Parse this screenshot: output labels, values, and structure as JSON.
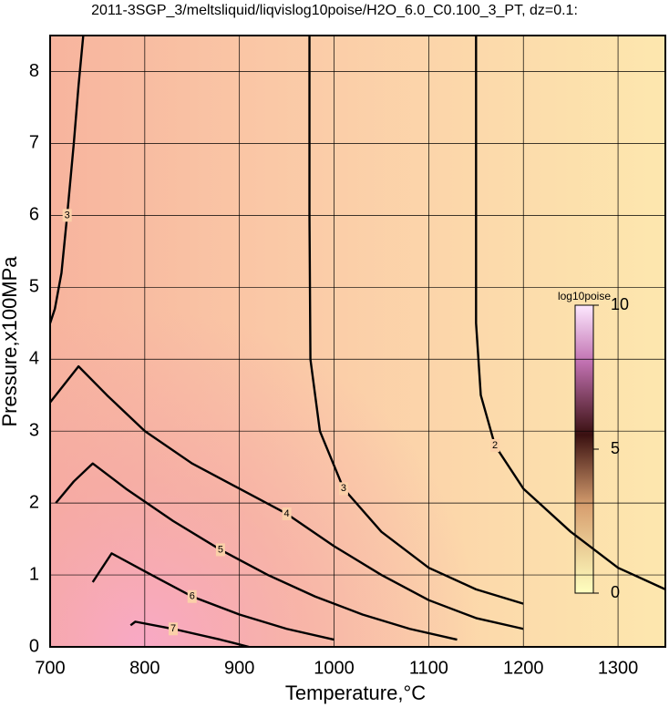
{
  "chart_data": {
    "type": "contour",
    "title": "2011-3SGP_3/meltsliquid/liqvislog10poise/H2O_6.0_C0.100_3_PT, dz=0.1:",
    "xlabel": "Temperature,°C",
    "ylabel": "Pressure,x100MPa",
    "xlim": [
      700,
      1350
    ],
    "ylim": [
      0,
      8.5
    ],
    "xticks": [
      700,
      800,
      900,
      1000,
      1100,
      1200,
      1300
    ],
    "yticks": [
      0,
      1,
      2,
      3,
      4,
      5,
      6,
      7,
      8
    ],
    "grid": true,
    "contours": [
      {
        "level": 2,
        "x": [
          1150,
          1150,
          1150,
          1155,
          1170,
          1200,
          1250,
          1300,
          1350
        ],
        "y": [
          8.5,
          6.5,
          4.5,
          3.5,
          2.8,
          2.2,
          1.6,
          1.1,
          0.8
        ]
      },
      {
        "level": 3,
        "x": [
          974,
          974,
          975,
          985,
          1010,
          1050,
          1100,
          1150,
          1200
        ],
        "y": [
          8.5,
          6.0,
          4.0,
          3.0,
          2.2,
          1.6,
          1.1,
          0.8,
          0.6
        ]
      },
      {
        "level": 3,
        "x": [
          735,
          730,
          725,
          718,
          712,
          705,
          700
        ],
        "y": [
          8.5,
          7.8,
          7.0,
          6.0,
          5.2,
          4.7,
          4.5
        ]
      },
      {
        "level": 4,
        "x": [
          700,
          730,
          760,
          800,
          850,
          900,
          950,
          1000,
          1050,
          1100,
          1150,
          1200
        ],
        "y": [
          3.4,
          3.9,
          3.5,
          3.0,
          2.55,
          2.2,
          1.85,
          1.4,
          1.0,
          0.65,
          0.4,
          0.25
        ]
      },
      {
        "level": 5,
        "x": [
          706,
          725,
          745,
          780,
          830,
          880,
          930,
          980,
          1030,
          1080,
          1130
        ],
        "y": [
          2.0,
          2.3,
          2.55,
          2.2,
          1.75,
          1.35,
          1.0,
          0.7,
          0.45,
          0.25,
          0.1
        ]
      },
      {
        "level": 6,
        "x": [
          745,
          765,
          800,
          850,
          900,
          950,
          1000
        ],
        "y": [
          0.9,
          1.3,
          1.05,
          0.7,
          0.45,
          0.25,
          0.1
        ]
      },
      {
        "level": 7,
        "x": [
          785,
          790,
          830,
          880,
          910
        ],
        "y": [
          0.3,
          0.35,
          0.25,
          0.1,
          0.0
        ]
      }
    ],
    "colorbar": {
      "label": "log10poise",
      "lim": [
        0,
        10
      ],
      "ticks": [
        0,
        5,
        10
      ]
    }
  }
}
